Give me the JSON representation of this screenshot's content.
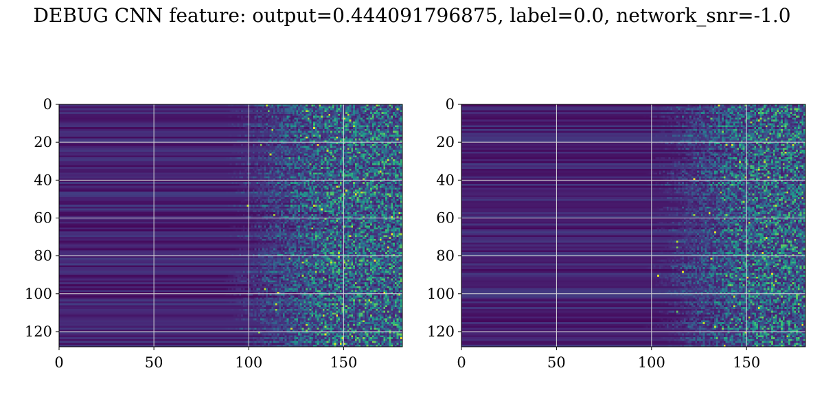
{
  "figure": {
    "title": "DEBUG CNN feature: output=0.444091796875, label=0.0, network_snr=-1.0"
  },
  "colors": {
    "background": "#440154",
    "gridline": "#d9d9d9",
    "colormap": [
      "#440154",
      "#482777",
      "#3e4a89",
      "#31688e",
      "#26828e",
      "#1f9e89",
      "#35b779",
      "#6ece58",
      "#b5de2b",
      "#fde725"
    ]
  },
  "chart_data": [
    {
      "type": "heatmap",
      "title": "",
      "xlabel": "",
      "ylabel": "",
      "xlim": [
        0,
        181
      ],
      "ylim": [
        128,
        0
      ],
      "x_ticks": [
        0,
        50,
        100,
        150
      ],
      "y_ticks": [
        0,
        20,
        40,
        60,
        80,
        100,
        120
      ],
      "grid": true,
      "colormap": "viridis",
      "rows": 128,
      "cols": 181,
      "noise_onset_col": 120,
      "description_pattern": "horizontal banded low-intensity stripes for columns 0-120, bright noisy speckle beyond column ~130"
    },
    {
      "type": "heatmap",
      "title": "",
      "xlabel": "",
      "ylabel": "",
      "xlim": [
        0,
        181
      ],
      "ylim": [
        128,
        0
      ],
      "x_ticks": [
        0,
        50,
        100,
        150
      ],
      "y_ticks": [
        0,
        20,
        40,
        60,
        80,
        100,
        120
      ],
      "grid": true,
      "colormap": "viridis",
      "rows": 128,
      "cols": 181,
      "noise_onset_col": 130,
      "description_pattern": "horizontal banded low-intensity stripes for columns 0-130, bright noisy speckle beyond column ~140"
    }
  ]
}
